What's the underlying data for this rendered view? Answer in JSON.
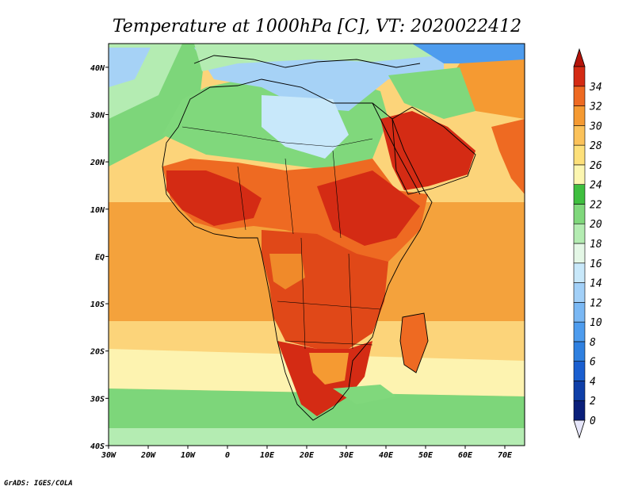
{
  "title": "Temperature at 1000hPa [C], VT: 2020022412",
  "credit": "GrADS: IGES/COLA",
  "map": {
    "lon_range": [
      -30,
      75
    ],
    "lat_range": [
      -40,
      45
    ],
    "x_ticks": [
      {
        "lon": -30,
        "label": "30W"
      },
      {
        "lon": -20,
        "label": "20W"
      },
      {
        "lon": -10,
        "label": "10W"
      },
      {
        "lon": 0,
        "label": "0"
      },
      {
        "lon": 10,
        "label": "10E"
      },
      {
        "lon": 20,
        "label": "20E"
      },
      {
        "lon": 30,
        "label": "30E"
      },
      {
        "lon": 40,
        "label": "40E"
      },
      {
        "lon": 50,
        "label": "50E"
      },
      {
        "lon": 60,
        "label": "60E"
      },
      {
        "lon": 70,
        "label": "70E"
      }
    ],
    "y_ticks": [
      {
        "lat": 40,
        "label": "40N"
      },
      {
        "lat": 30,
        "label": "30N"
      },
      {
        "lat": 20,
        "label": "20N"
      },
      {
        "lat": 10,
        "label": "10N"
      },
      {
        "lat": 0,
        "label": "EQ"
      },
      {
        "lat": -10,
        "label": "10S"
      },
      {
        "lat": -20,
        "label": "20S"
      },
      {
        "lat": -30,
        "label": "30S"
      },
      {
        "lat": -40,
        "label": "40S"
      }
    ]
  },
  "colorbar": {
    "levels": [
      "0",
      "2",
      "4",
      "6",
      "8",
      "10",
      "12",
      "14",
      "16",
      "18",
      "20",
      "22",
      "24",
      "26",
      "28",
      "30",
      "32",
      "34"
    ],
    "colors": [
      "#0a1f7a",
      "#0f3fa8",
      "#1a5fd0",
      "#2f80e0",
      "#4e9cee",
      "#7ab8f4",
      "#a2d0f8",
      "#c8e8fa",
      "#e4f7e6",
      "#b4ecb2",
      "#80d87c",
      "#3fbf3f",
      "#fcf6b0",
      "#fde07a",
      "#fbc25a",
      "#f59a32",
      "#ee6a22",
      "#d42b14"
    ],
    "under_color": "#e6e6fa",
    "over_color": "#b4140a"
  },
  "palette": {
    "ocean_warm": "#f4a23c",
    "ocean_mild": "#fcd47a",
    "ocean_cool": "#fdf3b0",
    "ocean_green": "#7dd67a",
    "land_hot": "#e04818",
    "land_very_hot": "#c8301a",
    "land_warm": "#f08a2a",
    "med_cool": "#a6d2f6"
  }
}
